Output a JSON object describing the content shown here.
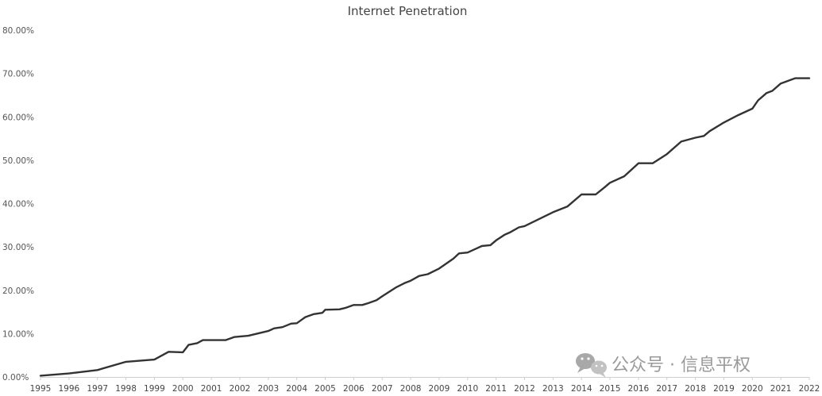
{
  "chart_data": {
    "type": "line",
    "title": "Internet Penetration",
    "xlabel": "",
    "ylabel": "",
    "xlim": [
      1995,
      2022
    ],
    "ylim": [
      0,
      0.8
    ],
    "yticks": [
      "0.00%",
      "10.00%",
      "20.00%",
      "30.00%",
      "40.00%",
      "50.00%",
      "60.00%",
      "70.00%",
      "80.00%"
    ],
    "xticks": [
      "1995",
      "1996",
      "1997",
      "1998",
      "1999",
      "2000",
      "2001",
      "2002",
      "2003",
      "2004",
      "2005",
      "2006",
      "2007",
      "2008",
      "2009",
      "2010",
      "2011",
      "2012",
      "2013",
      "2014",
      "2015",
      "2016",
      "2017",
      "2018",
      "2019",
      "2020",
      "2021",
      "2022"
    ],
    "grid": false,
    "legend": "none",
    "series": [
      {
        "color": "#333333",
        "x": [
          1995,
          1996,
          1997,
          1998,
          1999,
          1999.5,
          2000,
          2000.2,
          2000.5,
          2000.7,
          2001,
          2001.5,
          2001.8,
          2002.3,
          2003,
          2003.2,
          2003.5,
          2003.8,
          2004,
          2004.3,
          2004.6,
          2004.9,
          2005,
          2005.5,
          2005.7,
          2006,
          2006.3,
          2006.5,
          2006.8,
          2007,
          2007.5,
          2007.8,
          2008,
          2008.3,
          2008.6,
          2009,
          2009.5,
          2009.7,
          2010,
          2010.3,
          2010.5,
          2010.8,
          2011,
          2011.3,
          2011.5,
          2011.8,
          2012,
          2012.5,
          2013,
          2013.5,
          2014,
          2014.5,
          2014.8,
          2015,
          2015.5,
          2016,
          2016.5,
          2017,
          2017.5,
          2018,
          2018.3,
          2018.5,
          2019,
          2019.5,
          2020,
          2020.2,
          2020.5,
          2020.7,
          2021,
          2021.5,
          2021.8,
          2022
        ],
        "y": [
          0.003,
          0.008,
          0.016,
          0.035,
          0.04,
          0.058,
          0.057,
          0.074,
          0.078,
          0.085,
          0.085,
          0.085,
          0.092,
          0.095,
          0.106,
          0.112,
          0.115,
          0.123,
          0.124,
          0.138,
          0.145,
          0.148,
          0.155,
          0.156,
          0.159,
          0.166,
          0.166,
          0.17,
          0.177,
          0.186,
          0.207,
          0.217,
          0.222,
          0.233,
          0.237,
          0.25,
          0.273,
          0.285,
          0.287,
          0.296,
          0.302,
          0.304,
          0.315,
          0.328,
          0.334,
          0.345,
          0.348,
          0.364,
          0.38,
          0.393,
          0.421,
          0.421,
          0.437,
          0.448,
          0.463,
          0.493,
          0.493,
          0.514,
          0.543,
          0.552,
          0.556,
          0.567,
          0.587,
          0.604,
          0.619,
          0.638,
          0.655,
          0.66,
          0.677,
          0.689,
          0.689,
          0.689
        ]
      }
    ]
  },
  "watermark": {
    "text": "公众号 · 信息平权",
    "icon": "wechat-icon"
  }
}
